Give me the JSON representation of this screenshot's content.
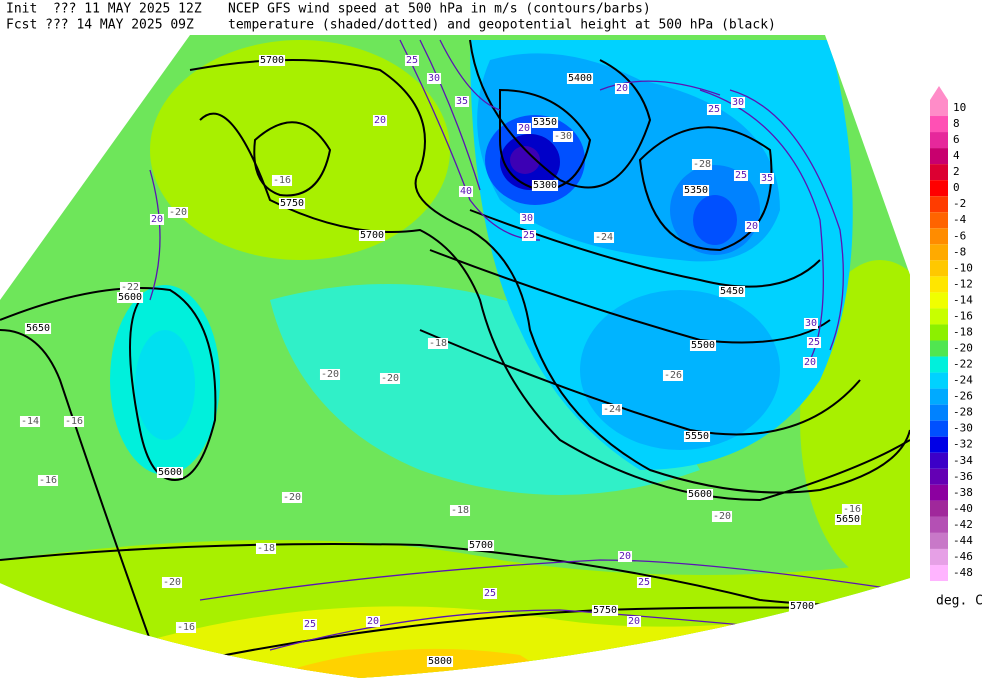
{
  "header": {
    "init": "Init  ??? 11 MAY 2025 12Z",
    "fcst": "Fcst ??? 14 MAY 2025 09Z",
    "line1": "NCEP GFS wind speed at 500 hPa in m/s (contours/barbs)",
    "line2": "temperature (shaded/dotted) and geopotential height at 500 hPa (black)"
  },
  "colorbar": {
    "levels": [
      10,
      8,
      6,
      4,
      2,
      0,
      -2,
      -4,
      -6,
      -8,
      -10,
      -12,
      -14,
      -16,
      -18,
      -20,
      -22,
      -24,
      -26,
      -28,
      -30,
      -32,
      -34,
      -36,
      -38,
      -40,
      -42,
      -44,
      -46,
      -48
    ],
    "colors": [
      "#ff8cc8",
      "#ff50b4",
      "#e6289b",
      "#c8006e",
      "#dc0032",
      "#ff0000",
      "#ff3c00",
      "#ff6400",
      "#ff8c00",
      "#ffaa00",
      "#ffc800",
      "#ffe600",
      "#f0ff00",
      "#c8ff00",
      "#8cf000",
      "#50e650",
      "#00f0dc",
      "#00d2ff",
      "#00aaff",
      "#0082ff",
      "#0050ff",
      "#0000e6",
      "#3c00c8",
      "#6400b4",
      "#8c00a0",
      "#a0289b",
      "#b450b4",
      "#c878c8",
      "#e6a0e6",
      "#ffb4ff"
    ],
    "unit": "deg. C"
  },
  "height_labels": [
    "5700",
    "5750",
    "5700",
    "5600",
    "5650",
    "5600",
    "5400",
    "5350",
    "5300",
    "5350",
    "5450",
    "5500",
    "5550",
    "5600",
    "5650",
    "5700",
    "5750",
    "5700",
    "5800"
  ],
  "temperature_labels": [
    "-16",
    "-20",
    "-22",
    "-18",
    "-20",
    "-20",
    "-24",
    "-28",
    "-26",
    "-20",
    "-18",
    "-20",
    "-16",
    "-18",
    "-16",
    "-20",
    "-16",
    "-14",
    "-16",
    "-30",
    "-24"
  ],
  "wind_labels": [
    "25",
    "30",
    "35",
    "20",
    "20",
    "40",
    "30",
    "25",
    "20",
    "20",
    "25",
    "30",
    "25",
    "35",
    "20",
    "20",
    "25",
    "30",
    "20",
    "25",
    "25",
    "20",
    "20",
    "25"
  ]
}
